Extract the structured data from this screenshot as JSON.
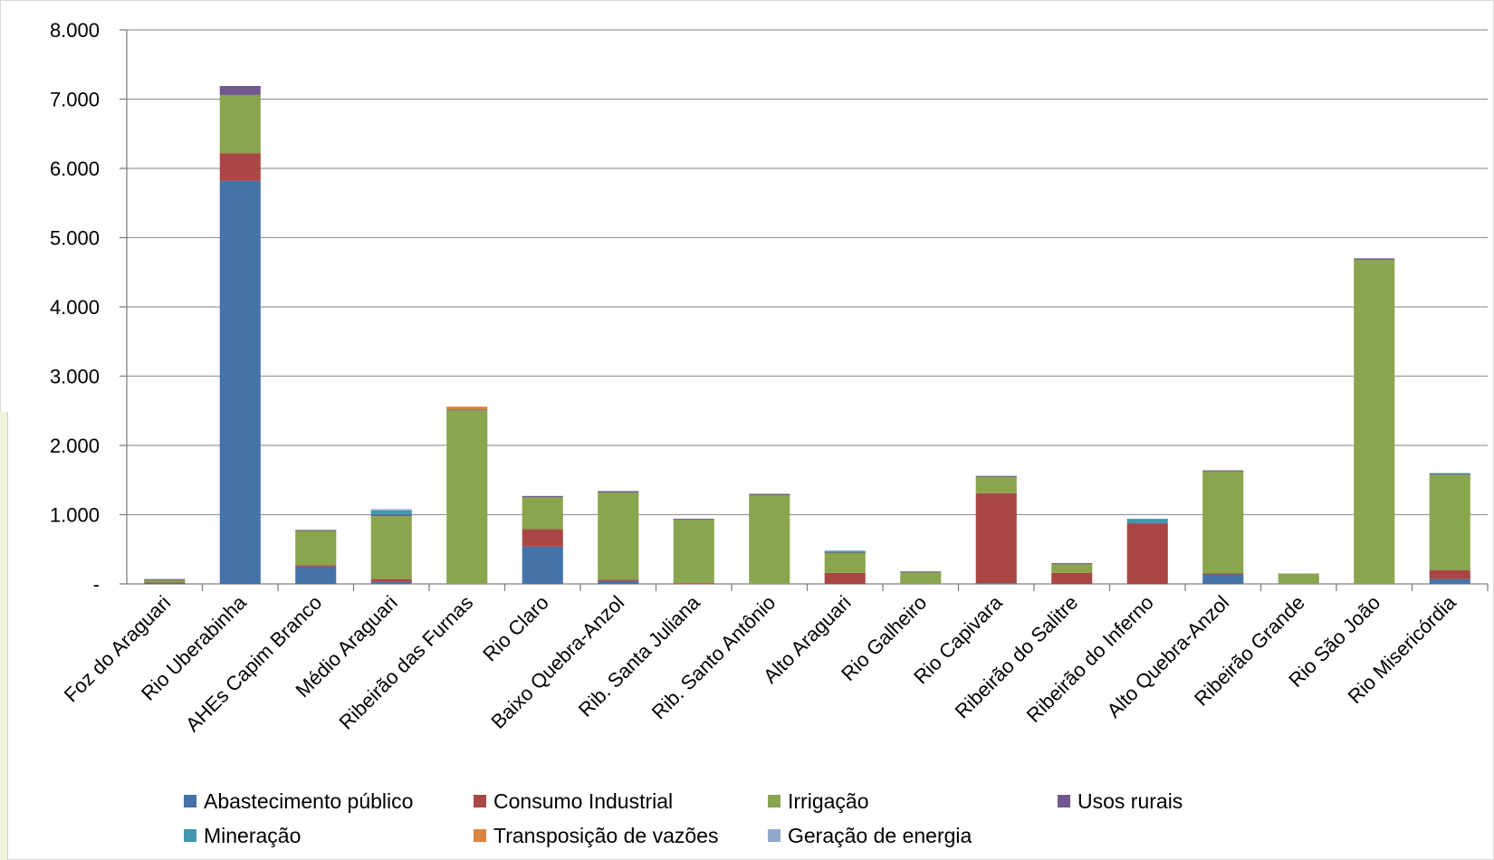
{
  "chart_data": {
    "type": "bar",
    "stacked": true,
    "title": "",
    "xlabel": "",
    "ylabel": "",
    "ylim": [
      0,
      8000
    ],
    "y_ticks": [
      {
        "value": 0,
        "label": "-"
      },
      {
        "value": 1000,
        "label": "1.000"
      },
      {
        "value": 2000,
        "label": "2.000"
      },
      {
        "value": 3000,
        "label": "3.000"
      },
      {
        "value": 4000,
        "label": "4.000"
      },
      {
        "value": 5000,
        "label": "5.000"
      },
      {
        "value": 6000,
        "label": "6.000"
      },
      {
        "value": 7000,
        "label": "7.000"
      },
      {
        "value": 8000,
        "label": "8.000"
      }
    ],
    "grid": true,
    "legend_position": "bottom",
    "categories": [
      "Foz do Araguari",
      "Rio Uberabinha",
      "AHEs Capim Branco",
      "Médio Araguari",
      "Ribeirão das Furnas",
      "Rio Claro",
      "Baixo Quebra-Anzol",
      "Rib. Santa Juliana",
      "Rib. Santo Antônio",
      "Alto Araguari",
      "Rio Galheiro",
      "Rio Capivara",
      "Ribeirão do Salitre",
      "Ribeirão do Inferno",
      "Alto Quebra-Anzol",
      "Ribeirão Grande",
      "Rio São João",
      "Rio Misericórdia"
    ],
    "series": [
      {
        "name": "Abastecimento público",
        "color": "#4572a7",
        "values": [
          10,
          5820,
          250,
          30,
          0,
          540,
          40,
          0,
          0,
          0,
          0,
          10,
          0,
          0,
          140,
          0,
          0,
          70
        ]
      },
      {
        "name": "Consumo Industrial",
        "color": "#aa4643",
        "values": [
          10,
          400,
          20,
          40,
          0,
          250,
          20,
          10,
          0,
          160,
          0,
          1300,
          160,
          870,
          10,
          0,
          0,
          130
        ]
      },
      {
        "name": "Irrigação",
        "color": "#89a54e",
        "values": [
          40,
          840,
          500,
          910,
          2510,
          460,
          1260,
          920,
          1280,
          290,
          170,
          240,
          130,
          0,
          1480,
          150,
          4680,
          1380
        ]
      },
      {
        "name": "Usos rurais",
        "color": "#71588f",
        "values": [
          10,
          130,
          10,
          20,
          10,
          20,
          20,
          10,
          20,
          10,
          10,
          10,
          10,
          10,
          10,
          0,
          20,
          10
        ]
      },
      {
        "name": "Mineração",
        "color": "#4198af",
        "values": [
          0,
          0,
          0,
          60,
          0,
          0,
          0,
          0,
          0,
          20,
          0,
          0,
          0,
          60,
          0,
          0,
          0,
          10
        ]
      },
      {
        "name": "Transposição de vazões",
        "color": "#db843d",
        "values": [
          0,
          0,
          0,
          0,
          40,
          0,
          0,
          0,
          0,
          0,
          0,
          0,
          0,
          0,
          0,
          0,
          0,
          0
        ]
      },
      {
        "name": "Geração de energia",
        "color": "#93a9cf",
        "values": [
          0,
          0,
          0,
          20,
          0,
          0,
          0,
          0,
          0,
          0,
          0,
          0,
          0,
          0,
          0,
          0,
          0,
          0
        ]
      }
    ]
  }
}
